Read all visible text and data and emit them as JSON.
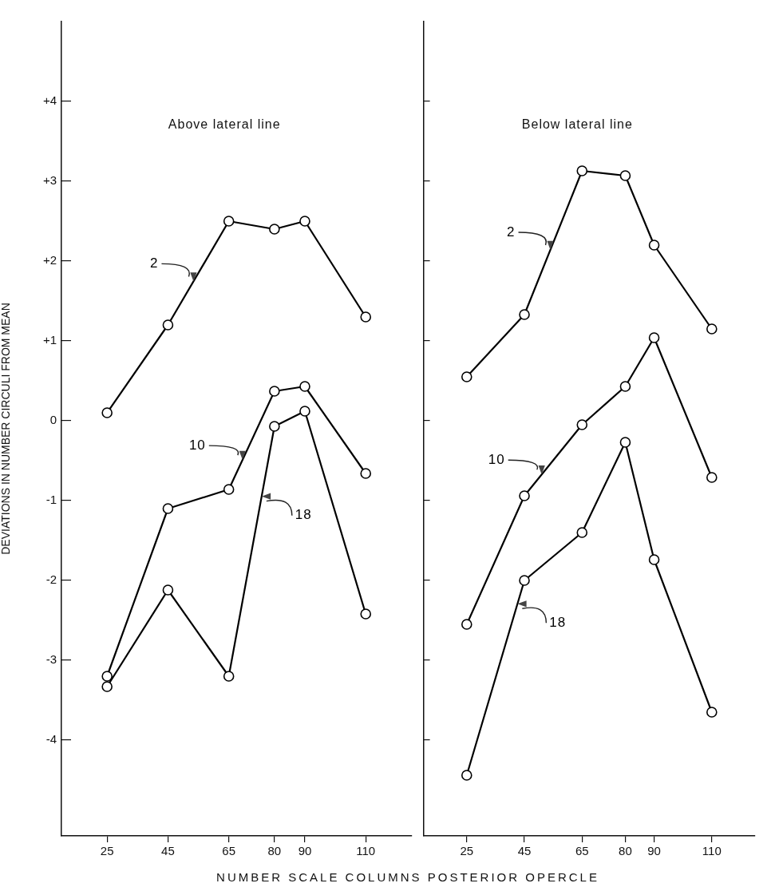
{
  "chart_data": [
    {
      "type": "line",
      "title": "Above lateral line",
      "xlabel": "NUMBER SCALE COLUMNS POSTERIOR OPERCLE",
      "ylabel": "DEVIATIONS IN NUMBER CIRCULI FROM MEAN",
      "x": [
        25,
        45,
        65,
        80,
        90,
        110
      ],
      "xlim": [
        10,
        125
      ],
      "xticks": [
        25,
        45,
        65,
        80,
        90,
        110
      ],
      "ylim": [
        -5.2,
        5.0
      ],
      "yticks": [
        {
          "value": 4,
          "label": "+4"
        },
        {
          "value": 3,
          "label": "+3"
        },
        {
          "value": 2,
          "label": "+2"
        },
        {
          "value": 1,
          "label": "+1"
        },
        0,
        -1,
        -2,
        -3,
        -4
      ],
      "marker": "circle",
      "line_style": "solid",
      "grid": false,
      "legend": false,
      "series": [
        {
          "name": "2",
          "color": "#000000",
          "values": [
            0.1,
            1.2,
            2.5,
            2.4,
            2.5,
            1.3
          ]
        },
        {
          "name": "10",
          "color": "#000000",
          "values": [
            -3.2,
            -1.1,
            -0.86,
            0.37,
            0.43,
            -0.66
          ]
        },
        {
          "name": "18",
          "color": "#000000",
          "values": [
            -3.33,
            -2.12,
            -3.2,
            -0.07,
            0.12,
            -2.42
          ]
        }
      ]
    },
    {
      "type": "line",
      "title": "Below lateral line",
      "x": [
        25,
        45,
        65,
        80,
        90,
        110
      ],
      "xlim": [
        10,
        125
      ],
      "xticks": [
        25,
        45,
        65,
        80,
        90,
        110
      ],
      "ylim": [
        -5.2,
        5.0
      ],
      "yticks": [
        {
          "value": 4,
          "label": null
        },
        {
          "value": 3,
          "label": null
        },
        {
          "value": 2,
          "label": null
        },
        {
          "value": 1,
          "label": null
        },
        {
          "value": 0,
          "label": null
        },
        {
          "value": -1,
          "label": null
        },
        {
          "value": -2,
          "label": null
        },
        {
          "value": -3,
          "label": null
        },
        {
          "value": -4,
          "label": null
        }
      ],
      "tick_labels": "x",
      "marker": "circle",
      "line_style": "solid",
      "grid": false,
      "legend": false,
      "series": [
        {
          "name": "2",
          "color": "#000000",
          "values": [
            0.55,
            1.33,
            3.13,
            3.07,
            2.2,
            1.15
          ]
        },
        {
          "name": "10",
          "color": "#000000",
          "values": [
            -2.55,
            -0.94,
            -0.05,
            0.43,
            1.04,
            -0.71
          ]
        },
        {
          "name": "18",
          "color": "#000000",
          "values": [
            -4.44,
            -2.0,
            -1.4,
            -0.27,
            -1.74,
            -3.65
          ]
        }
      ]
    }
  ]
}
